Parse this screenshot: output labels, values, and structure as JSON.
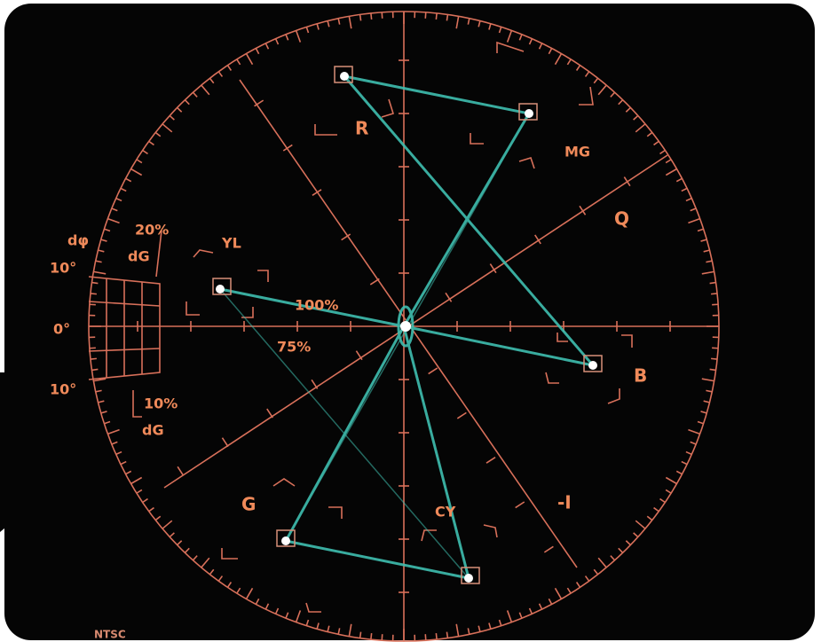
{
  "labels": {
    "r": "R",
    "mg": "MG",
    "q": "Q",
    "b": "B",
    "minus_i": "-I",
    "cy": "CY",
    "g": "G",
    "yl": "YL",
    "percent_100": "100%",
    "percent_75": "75%"
  },
  "dg_scale": {
    "d_phase": "dφ",
    "dg_20": "20%",
    "dg_20_unit": "dG",
    "deg_top": "10°",
    "deg_zero": "0°",
    "deg_bottom": "10°",
    "dg_10": "10%",
    "dg_10_unit": "dG"
  },
  "footer": "NTSC"
}
